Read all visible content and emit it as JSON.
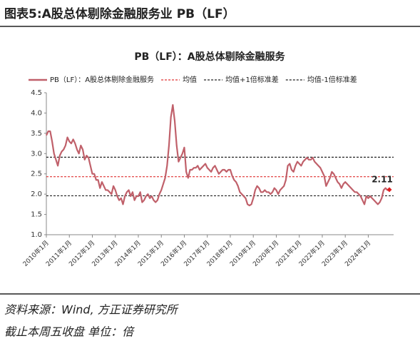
{
  "header": {
    "title": "图表5:A股总体剔除金融服务业 PB（LF）"
  },
  "footer": {
    "source": "资料来源：Wind, 方正证券研究所",
    "note": "截止本周五收盘 单位：倍"
  },
  "chart_data": {
    "type": "line",
    "title": "PB（LF）：A股总体剔除金融服务",
    "categories": [
      "2010年1月",
      null,
      null,
      null,
      null,
      null,
      null,
      null,
      null,
      null,
      null,
      null,
      "2011年1月",
      null,
      null,
      null,
      null,
      null,
      null,
      null,
      null,
      null,
      null,
      null,
      "2012年1月",
      null,
      null,
      null,
      null,
      null,
      null,
      null,
      null,
      null,
      null,
      null,
      "2013年1月",
      null,
      null,
      null,
      null,
      null,
      null,
      null,
      null,
      null,
      null,
      null,
      "2014年1月",
      null,
      null,
      null,
      null,
      null,
      null,
      null,
      null,
      null,
      null,
      null,
      "2015年1月",
      null,
      null,
      null,
      null,
      null,
      null,
      null,
      null,
      null,
      null,
      null,
      "2016年1月",
      null,
      null,
      null,
      null,
      null,
      null,
      null,
      null,
      null,
      null,
      null,
      "2017年1月",
      null,
      null,
      null,
      null,
      null,
      null,
      null,
      null,
      null,
      null,
      null,
      "2018年1月",
      null,
      null,
      null,
      null,
      null,
      null,
      null,
      null,
      null,
      null,
      null,
      "2019年1月",
      null,
      null,
      null,
      null,
      null,
      null,
      null,
      null,
      null,
      null,
      null,
      "2020年1月",
      null,
      null,
      null,
      null,
      null,
      null,
      null,
      null,
      null,
      null,
      null,
      "2021年1月",
      null,
      null,
      null,
      null,
      null,
      null,
      null,
      null,
      null,
      null,
      null,
      "2022年1月",
      null,
      null,
      null,
      null,
      null,
      null,
      null,
      null,
      null,
      null,
      null,
      "2023年1月",
      null,
      null,
      null,
      null,
      null,
      null,
      null,
      null,
      null,
      null,
      null,
      "2024年1月",
      null,
      null,
      null,
      null,
      null,
      null,
      null,
      null,
      null,
      null,
      null
    ],
    "series": [
      {
        "name": "PB（LF）：A股总体剔除金融服务",
        "color": "#c0606a",
        "values": [
          3.45,
          3.55,
          3.55,
          3.3,
          3.0,
          2.85,
          2.7,
          2.95,
          3.05,
          3.1,
          3.2,
          3.4,
          3.3,
          3.25,
          3.35,
          3.25,
          3.1,
          3.0,
          3.2,
          3.1,
          2.85,
          2.95,
          2.9,
          2.7,
          2.5,
          2.5,
          2.35,
          2.35,
          2.15,
          2.3,
          2.2,
          2.1,
          2.1,
          2.05,
          2.0,
          2.2,
          2.1,
          1.95,
          1.85,
          1.9,
          1.75,
          1.95,
          2.05,
          2.1,
          1.95,
          2.05,
          1.85,
          1.95,
          1.95,
          2.05,
          1.8,
          1.85,
          1.95,
          2.0,
          1.9,
          1.95,
          1.85,
          1.8,
          1.85,
          2.0,
          2.1,
          2.25,
          2.4,
          2.7,
          3.2,
          3.9,
          4.2,
          3.8,
          3.2,
          2.8,
          2.9,
          3.0,
          3.15,
          2.55,
          2.4,
          2.6,
          2.6,
          2.65,
          2.65,
          2.7,
          2.6,
          2.65,
          2.7,
          2.75,
          2.65,
          2.6,
          2.55,
          2.65,
          2.7,
          2.6,
          2.5,
          2.55,
          2.6,
          2.6,
          2.55,
          2.6,
          2.6,
          2.45,
          2.35,
          2.3,
          2.2,
          2.05,
          2.0,
          1.95,
          1.9,
          1.75,
          1.72,
          1.75,
          1.9,
          2.1,
          2.2,
          2.15,
          2.05,
          2.05,
          2.1,
          2.05,
          2.05,
          2.0,
          2.05,
          2.15,
          2.1,
          2.0,
          2.1,
          2.15,
          2.2,
          2.35,
          2.7,
          2.75,
          2.6,
          2.55,
          2.7,
          2.8,
          2.75,
          2.7,
          2.8,
          2.85,
          2.9,
          2.85,
          2.85,
          2.9,
          2.8,
          2.75,
          2.7,
          2.65,
          2.55,
          2.45,
          2.2,
          2.3,
          2.4,
          2.55,
          2.5,
          2.4,
          2.3,
          2.25,
          2.15,
          2.25,
          2.3,
          2.25,
          2.2,
          2.15,
          2.1,
          2.05,
          2.05,
          2.0,
          1.95,
          1.85,
          1.75,
          1.95,
          1.9,
          1.95,
          1.9,
          1.85,
          1.8,
          1.75,
          1.8,
          1.9,
          2.1,
          2.15,
          2.1,
          2.11
        ],
        "value_labels": [
          null,
          null,
          null,
          null,
          null,
          null,
          null,
          null,
          null,
          null,
          null,
          null,
          null,
          null,
          null,
          null,
          null,
          null,
          null,
          null,
          null,
          null,
          null,
          null,
          null,
          null,
          null,
          null,
          null,
          null,
          null,
          null,
          null,
          null,
          null,
          null,
          null,
          null,
          null,
          null,
          null,
          null,
          null,
          null,
          null,
          null,
          null,
          null,
          null,
          null,
          null,
          null,
          null,
          null,
          null,
          null,
          null,
          null,
          null,
          null,
          null,
          null,
          null,
          null,
          null,
          null,
          null,
          null,
          null,
          null,
          null,
          null,
          null,
          null,
          null,
          null,
          null,
          null,
          null,
          null,
          null,
          null,
          null,
          null,
          null,
          null,
          null,
          null,
          null,
          null,
          null,
          null,
          null,
          null,
          null,
          null,
          null,
          null,
          null,
          null,
          null,
          null,
          null,
          null,
          null,
          null,
          null,
          null,
          null,
          null,
          null,
          null,
          null,
          null,
          null,
          null,
          null,
          null,
          null,
          null,
          null,
          null,
          null,
          null,
          null,
          null,
          null,
          null,
          null,
          null,
          null,
          null,
          null,
          null,
          null,
          null,
          null,
          null,
          null,
          null,
          null,
          null,
          null,
          null,
          null,
          null,
          null,
          null,
          null,
          null,
          null,
          null,
          null,
          null,
          null,
          null,
          null,
          null,
          null,
          null,
          null,
          null,
          null,
          null,
          null,
          null,
          null,
          null,
          null,
          null,
          null,
          null,
          null,
          null,
          null,
          null,
          null,
          null,
          null,
          "2.11"
        ],
        "label_color": "#e02020"
      }
    ],
    "reference_lines": [
      {
        "name": "均值",
        "value": 2.43,
        "color": "#e03030"
      },
      {
        "name": "均值+1倍标准差",
        "value": 2.91,
        "color": "#222222"
      },
      {
        "name": "均值-1倍标准差",
        "value": 1.96,
        "color": "#222222"
      }
    ],
    "ylim": [
      1,
      4.5
    ],
    "yticks": [
      {
        "value": 1,
        "label": "1.0"
      },
      1.5,
      {
        "value": 2,
        "label": "2.0"
      },
      2.5,
      {
        "value": 3,
        "label": "3.0"
      },
      3.5,
      {
        "value": 4,
        "label": "4.0"
      },
      4.5
    ]
  }
}
